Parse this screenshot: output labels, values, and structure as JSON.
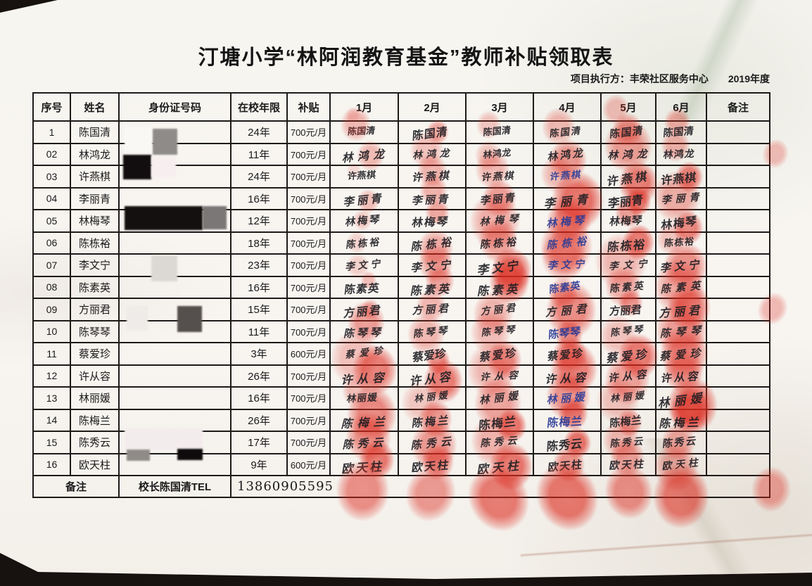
{
  "page": {
    "title": "汀塘小学“林阿润教育基金”教师补贴领取表",
    "executor_label": "项目执行方：丰荣社区服务中心",
    "year_label": "2019年度"
  },
  "colors": {
    "stamp_red": "#dc2a1e",
    "ink_black": "#1d1d22",
    "ink_blue": "#283a96"
  },
  "table": {
    "columns": [
      "序号",
      "姓名",
      "身份证号码",
      "在校年限",
      "补贴",
      "1月",
      "2月",
      "3月",
      "4月",
      "5月",
      "6月",
      "备注"
    ],
    "rows": [
      {
        "no": "1",
        "name": "陈国清",
        "id": "",
        "years": "24年",
        "subsidy": "700元/月",
        "signature": "陈国清",
        "blue_months": [],
        "remark": ""
      },
      {
        "no": "02",
        "name": "林鸿龙",
        "id": "",
        "years": "11年",
        "subsidy": "700元/月",
        "signature": "林鸿龙",
        "blue_months": [],
        "remark": ""
      },
      {
        "no": "03",
        "name": "许燕棋",
        "id": "",
        "years": "24年",
        "subsidy": "700元/月",
        "signature": "许燕棋",
        "blue_months": [
          3
        ],
        "remark": ""
      },
      {
        "no": "04",
        "name": "李丽青",
        "id": "",
        "years": "16年",
        "subsidy": "700元/月",
        "signature": "李丽青",
        "blue_months": [],
        "remark": ""
      },
      {
        "no": "05",
        "name": "林梅琴",
        "id": "",
        "years": "12年",
        "subsidy": "700元/月",
        "signature": "林梅琴",
        "blue_months": [
          3
        ],
        "remark": ""
      },
      {
        "no": "06",
        "name": "陈栋裕",
        "id": "",
        "years": "18年",
        "subsidy": "700元/月",
        "signature": "陈栋裕",
        "blue_months": [
          3
        ],
        "remark": ""
      },
      {
        "no": "07",
        "name": "李文宁",
        "id": "",
        "years": "23年",
        "subsidy": "700元/月",
        "signature": "李文宁",
        "blue_months": [
          3
        ],
        "remark": ""
      },
      {
        "no": "08",
        "name": "陈素英",
        "id": "",
        "years": "16年",
        "subsidy": "700元/月",
        "signature": "陈素英",
        "blue_months": [
          3
        ],
        "remark": ""
      },
      {
        "no": "09",
        "name": "方丽君",
        "id": "",
        "years": "15年",
        "subsidy": "700元/月",
        "signature": "方丽君",
        "blue_months": [],
        "remark": ""
      },
      {
        "no": "10",
        "name": "陈琴琴",
        "id": "",
        "years": "11年",
        "subsidy": "700元/月",
        "signature": "陈琴琴",
        "blue_months": [
          3
        ],
        "remark": ""
      },
      {
        "no": "11",
        "name": "蔡爱珍",
        "id": "",
        "years": "3年",
        "subsidy": "600元/月",
        "signature": "蔡爱珍",
        "blue_months": [],
        "remark": ""
      },
      {
        "no": "12",
        "name": "许从容",
        "id": "",
        "years": "26年",
        "subsidy": "700元/月",
        "signature": "许从容",
        "blue_months": [],
        "remark": ""
      },
      {
        "no": "13",
        "name": "林丽媛",
        "id": "",
        "years": "16年",
        "subsidy": "700元/月",
        "signature": "林丽媛",
        "blue_months": [
          3
        ],
        "remark": ""
      },
      {
        "no": "14",
        "name": "陈梅兰",
        "id": "",
        "years": "26年",
        "subsidy": "700元/月",
        "signature": "陈梅兰",
        "blue_months": [
          3
        ],
        "remark": ""
      },
      {
        "no": "15",
        "name": "陈秀云",
        "id": "",
        "years": "17年",
        "subsidy": "700元/月",
        "signature": "陈秀云",
        "blue_months": [],
        "remark": ""
      },
      {
        "no": "16",
        "name": "欧天柱",
        "id": "",
        "years": "9年",
        "subsidy": "600元/月",
        "signature": "欧天柱",
        "blue_months": [],
        "remark": ""
      }
    ],
    "footer": {
      "note_label": "备注",
      "principal": "校长陈国清TEL",
      "phone": "13860905595"
    }
  }
}
